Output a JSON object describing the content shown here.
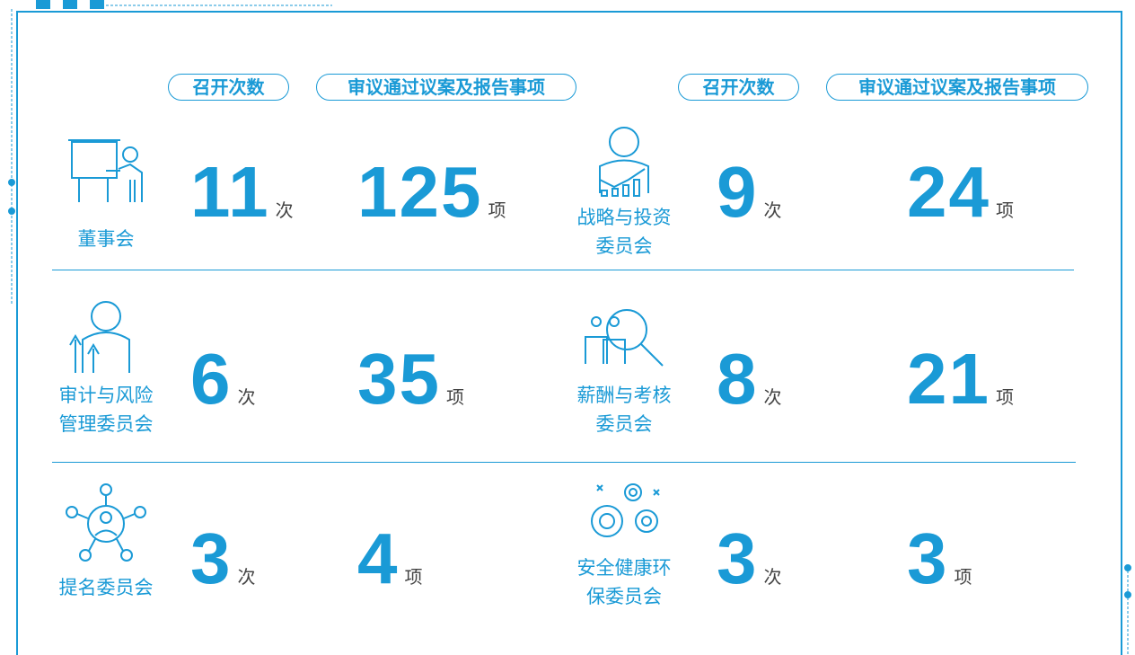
{
  "headers": {
    "meetings": "召开次数",
    "items": "审议通过议案及报告事项"
  },
  "units": {
    "meetings": "次",
    "items": "项"
  },
  "committees": [
    {
      "name": [
        "董事会"
      ],
      "meetings": 11,
      "items": 125
    },
    {
      "name": [
        "战略与投资",
        "委员会"
      ],
      "meetings": 9,
      "items": 24
    },
    {
      "name": [
        "审计与风险",
        "管理委员会"
      ],
      "meetings": 6,
      "items": 35
    },
    {
      "name": [
        "薪酬与考核",
        "委员会"
      ],
      "meetings": 8,
      "items": 21
    },
    {
      "name": [
        "提名委员会"
      ],
      "meetings": 3,
      "items": 4
    },
    {
      "name": [
        "安全健康环",
        "保委员会"
      ],
      "meetings": 3,
      "items": 3
    }
  ]
}
